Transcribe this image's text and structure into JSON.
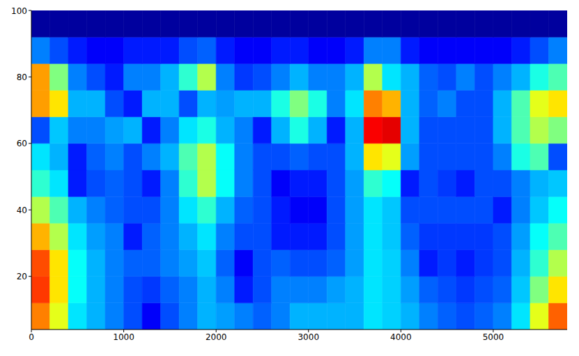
{
  "chart_data": {
    "type": "heatmap",
    "xlim": [
      0,
      5800
    ],
    "ylim": [
      4,
      100
    ],
    "xticks": [
      0,
      1000,
      2000,
      3000,
      4000,
      5000
    ],
    "yticks": [
      20,
      40,
      60,
      80,
      100
    ],
    "zlim": [
      0,
      1
    ],
    "x_edges": [
      0,
      200,
      400,
      600,
      800,
      1000,
      1200,
      1400,
      1600,
      1800,
      2000,
      2200,
      2400,
      2600,
      2800,
      3000,
      3200,
      3400,
      3600,
      3800,
      4000,
      4200,
      4400,
      4600,
      4800,
      5000,
      5200,
      5400,
      5600,
      5800
    ],
    "y_edges": [
      4,
      12,
      20,
      28,
      36,
      44,
      52,
      60,
      68,
      76,
      84,
      92,
      100
    ],
    "cells": [
      [
        0.75,
        0.6,
        0.35,
        0.3,
        0.25,
        0.2,
        0.12,
        0.2,
        0.25,
        0.3,
        0.28,
        0.25,
        0.22,
        0.25,
        0.3,
        0.3,
        0.3,
        0.3,
        0.35,
        0.33,
        0.3,
        0.25,
        0.22,
        0.2,
        0.22,
        0.25,
        0.35,
        0.6,
        0.78
      ],
      [
        0.82,
        0.65,
        0.38,
        0.3,
        0.25,
        0.2,
        0.18,
        0.22,
        0.25,
        0.3,
        0.25,
        0.15,
        0.2,
        0.25,
        0.25,
        0.25,
        0.28,
        0.3,
        0.35,
        0.33,
        0.28,
        0.22,
        0.2,
        0.18,
        0.2,
        0.22,
        0.32,
        0.5,
        0.65
      ],
      [
        0.8,
        0.65,
        0.38,
        0.3,
        0.25,
        0.22,
        0.22,
        0.25,
        0.28,
        0.32,
        0.22,
        0.12,
        0.2,
        0.22,
        0.2,
        0.2,
        0.22,
        0.28,
        0.35,
        0.33,
        0.25,
        0.15,
        0.18,
        0.15,
        0.18,
        0.2,
        0.3,
        0.42,
        0.55
      ],
      [
        0.7,
        0.55,
        0.35,
        0.28,
        0.25,
        0.15,
        0.22,
        0.25,
        0.3,
        0.35,
        0.25,
        0.2,
        0.2,
        0.15,
        0.15,
        0.15,
        0.2,
        0.28,
        0.35,
        0.32,
        0.22,
        0.18,
        0.18,
        0.18,
        0.18,
        0.2,
        0.28,
        0.38,
        0.45
      ],
      [
        0.55,
        0.45,
        0.3,
        0.25,
        0.22,
        0.2,
        0.2,
        0.25,
        0.35,
        0.42,
        0.3,
        0.22,
        0.2,
        0.15,
        0.12,
        0.12,
        0.2,
        0.28,
        0.35,
        0.32,
        0.2,
        0.2,
        0.2,
        0.2,
        0.2,
        0.15,
        0.25,
        0.32,
        0.38
      ],
      [
        0.42,
        0.35,
        0.15,
        0.2,
        0.22,
        0.2,
        0.15,
        0.25,
        0.42,
        0.55,
        0.38,
        0.25,
        0.2,
        0.12,
        0.15,
        0.15,
        0.2,
        0.28,
        0.42,
        0.38,
        0.15,
        0.2,
        0.18,
        0.15,
        0.2,
        0.2,
        0.25,
        0.3,
        0.32
      ],
      [
        0.35,
        0.3,
        0.15,
        0.22,
        0.25,
        0.2,
        0.25,
        0.3,
        0.45,
        0.55,
        0.38,
        0.25,
        0.2,
        0.2,
        0.22,
        0.2,
        0.2,
        0.3,
        0.65,
        0.6,
        0.28,
        0.2,
        0.2,
        0.2,
        0.2,
        0.25,
        0.4,
        0.45,
        0.2
      ],
      [
        0.2,
        0.32,
        0.25,
        0.25,
        0.28,
        0.3,
        0.15,
        0.25,
        0.35,
        0.4,
        0.3,
        0.25,
        0.15,
        0.3,
        0.4,
        0.3,
        0.15,
        0.3,
        0.88,
        0.9,
        0.3,
        0.2,
        0.2,
        0.2,
        0.2,
        0.3,
        0.45,
        0.55,
        0.5
      ],
      [
        0.72,
        0.65,
        0.3,
        0.3,
        0.2,
        0.15,
        0.3,
        0.3,
        0.2,
        0.3,
        0.28,
        0.3,
        0.3,
        0.4,
        0.5,
        0.4,
        0.25,
        0.35,
        0.75,
        0.7,
        0.3,
        0.22,
        0.25,
        0.2,
        0.2,
        0.3,
        0.45,
        0.6,
        0.65
      ],
      [
        0.72,
        0.5,
        0.25,
        0.2,
        0.15,
        0.25,
        0.25,
        0.3,
        0.42,
        0.55,
        0.25,
        0.18,
        0.2,
        0.25,
        0.3,
        0.25,
        0.25,
        0.3,
        0.55,
        0.35,
        0.3,
        0.22,
        0.2,
        0.25,
        0.2,
        0.25,
        0.3,
        0.4,
        0.45
      ],
      [
        0.25,
        0.2,
        0.15,
        0.12,
        0.12,
        0.15,
        0.15,
        0.15,
        0.2,
        0.22,
        0.15,
        0.12,
        0.12,
        0.15,
        0.15,
        0.12,
        0.12,
        0.15,
        0.25,
        0.25,
        0.15,
        0.12,
        0.12,
        0.12,
        0.12,
        0.12,
        0.15,
        0.2,
        0.25
      ],
      [
        0.03,
        0.03,
        0.03,
        0.03,
        0.03,
        0.03,
        0.03,
        0.03,
        0.03,
        0.03,
        0.03,
        0.03,
        0.03,
        0.03,
        0.03,
        0.03,
        0.03,
        0.03,
        0.03,
        0.03,
        0.03,
        0.03,
        0.03,
        0.03,
        0.03,
        0.03,
        0.03,
        0.03,
        0.03
      ]
    ]
  }
}
